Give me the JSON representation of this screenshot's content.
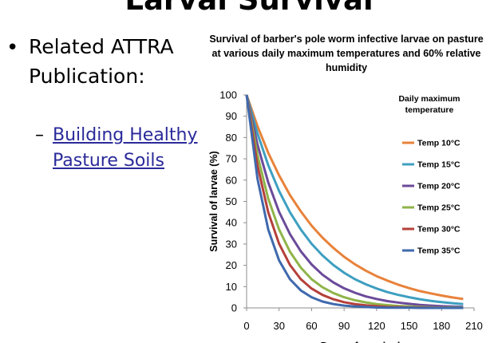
{
  "slide": {
    "title": "Larval Survival",
    "bullet": "Related ATTRA Publication:",
    "sub_link": "Building Healthy Pasture Soils"
  },
  "chart_data": {
    "type": "line",
    "title": "Survival of barber's pole worm infective larvae on pasture at various daily maximum temperatures and 60% relative humidity",
    "ylabel": "Survival of larvae (%)",
    "xlabel": "Days of survival",
    "xlim": [
      0,
      210
    ],
    "ylim": [
      0,
      100
    ],
    "xticks": [
      0,
      30,
      60,
      90,
      120,
      150,
      180,
      210
    ],
    "yticks": [
      0,
      10,
      20,
      30,
      40,
      50,
      60,
      70,
      80,
      90,
      100
    ],
    "legend_title": "Daily maximum temperature",
    "legend_position": "right",
    "x": [
      0,
      10,
      20,
      30,
      40,
      50,
      60,
      70,
      80,
      90,
      100,
      110,
      120,
      130,
      140,
      150,
      160,
      170,
      180,
      190,
      200
    ],
    "series": [
      {
        "name": "Temp 10°C",
        "color": "#e8823a",
        "values": [
          100,
          85.4,
          72.8,
          62.2,
          53.0,
          45.3,
          38.6,
          33.0,
          28.2,
          24.0,
          20.5,
          17.5,
          14.9,
          12.8,
          10.9,
          9.3,
          7.9,
          6.8,
          5.8,
          4.9,
          4.2
        ]
      },
      {
        "name": "Temp 15°C",
        "color": "#3e9fc0",
        "values": [
          100,
          81.9,
          67.0,
          54.9,
          44.9,
          36.8,
          30.1,
          24.7,
          20.2,
          16.5,
          13.5,
          11.1,
          9.1,
          7.4,
          6.1,
          5.0,
          4.1,
          3.3,
          2.7,
          2.2,
          1.8
        ]
      },
      {
        "name": "Temp 20°C",
        "color": "#6b4a9a",
        "values": [
          100,
          76.7,
          58.9,
          45.1,
          34.7,
          26.6,
          20.4,
          15.6,
          12.0,
          9.2,
          7.1,
          5.4,
          4.2,
          3.2,
          2.5,
          1.9,
          1.4,
          1.1,
          0.8,
          0.6,
          0.5
        ]
      },
      {
        "name": "Temp 25°C",
        "color": "#8fb44a",
        "values": [
          100,
          71.7,
          51.3,
          36.8,
          26.4,
          18.9,
          13.5,
          9.7,
          7.0,
          5.0,
          3.6,
          2.6,
          1.8,
          1.3,
          0.9,
          0.7,
          0.5,
          0.3,
          0.2,
          0.2,
          0.1
        ]
      },
      {
        "name": "Temp 30°C",
        "color": "#b5403a",
        "values": [
          100,
          66.9,
          44.9,
          30.1,
          20.2,
          13.5,
          9.1,
          6.1,
          4.1,
          2.7,
          1.8,
          1.2,
          0.8,
          0.5,
          0.4,
          0.2,
          0.2,
          0.1,
          0.1,
          0.0,
          0.0
        ]
      },
      {
        "name": "Temp 35°C",
        "color": "#3f69ad",
        "values": [
          100,
          60.7,
          36.8,
          22.3,
          13.5,
          8.2,
          5.0,
          3.0,
          1.8,
          1.1,
          0.7,
          0.4,
          0.2,
          0.1,
          0.1,
          0.1,
          0.0,
          0.0,
          0.0,
          0.0,
          0.0
        ]
      }
    ]
  }
}
